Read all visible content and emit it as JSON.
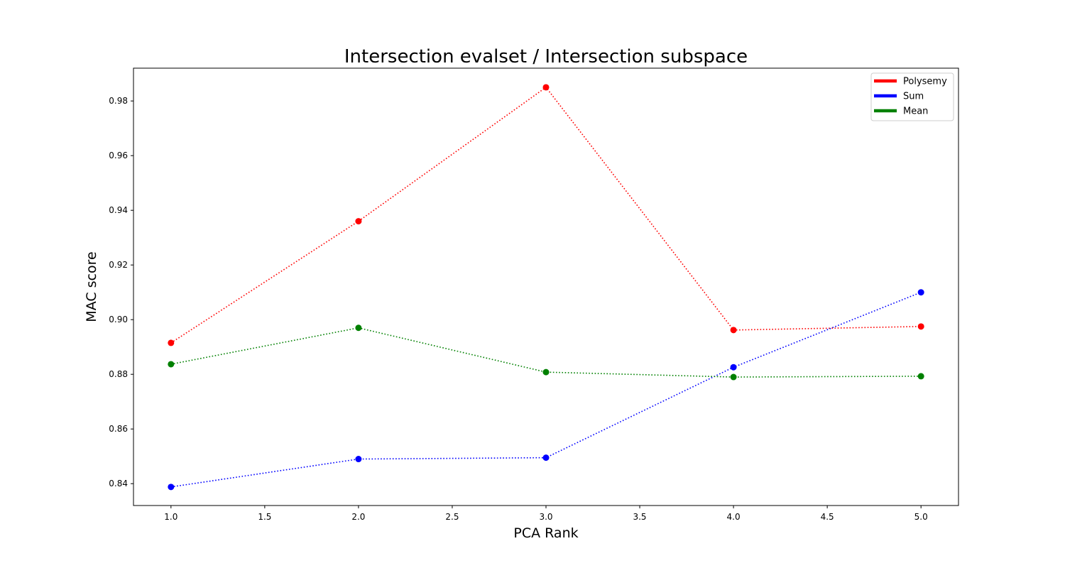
{
  "chart_data": {
    "type": "line",
    "title": "Intersection evalset / Intersection subspace",
    "xlabel": "PCA Rank",
    "ylabel": "MAC score",
    "xlim": [
      0.8,
      5.2
    ],
    "ylim": [
      0.832,
      0.992
    ],
    "xticks": [
      1.0,
      1.5,
      2.0,
      2.5,
      3.0,
      3.5,
      4.0,
      4.5,
      5.0
    ],
    "xtick_labels": [
      "1.0",
      "1.5",
      "2.0",
      "2.5",
      "3.0",
      "3.5",
      "4.0",
      "4.5",
      "5.0"
    ],
    "yticks": [
      0.84,
      0.86,
      0.88,
      0.9,
      0.92,
      0.94,
      0.96,
      0.98
    ],
    "ytick_labels": [
      "0.84",
      "0.86",
      "0.88",
      "0.90",
      "0.92",
      "0.94",
      "0.96",
      "0.98"
    ],
    "x": [
      1,
      2,
      3,
      4,
      5
    ],
    "grid": false,
    "legend_position": "top-right",
    "line_style": "dotted",
    "series": [
      {
        "name": "Polysemy",
        "color": "#ff0000",
        "values": [
          0.8915,
          0.936,
          0.985,
          0.8962,
          0.8975
        ]
      },
      {
        "name": "Sum",
        "color": "#0000ff",
        "values": [
          0.8388,
          0.849,
          0.8495,
          0.8826,
          0.91
        ]
      },
      {
        "name": "Mean",
        "color": "#008000",
        "values": [
          0.8837,
          0.897,
          0.8808,
          0.879,
          0.8793
        ]
      }
    ]
  }
}
